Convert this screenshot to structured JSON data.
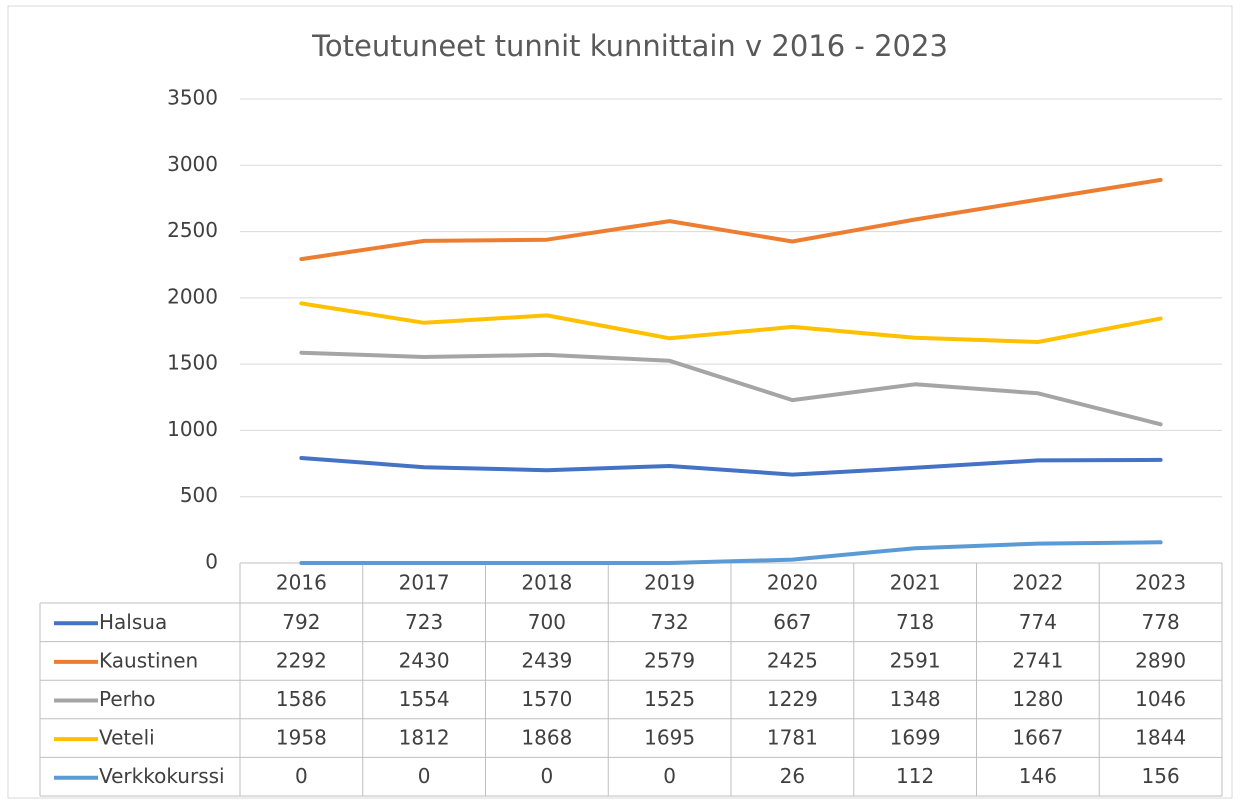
{
  "chart_data": {
    "type": "line",
    "title": "Toteutuneet tunnit kunnittain v  2016 - 2023",
    "categories": [
      "2016",
      "2017",
      "2018",
      "2019",
      "2020",
      "2021",
      "2022",
      "2023"
    ],
    "series": [
      {
        "name": "Halsua",
        "color": "#4472c4",
        "values": [
          792,
          723,
          700,
          732,
          667,
          718,
          774,
          778
        ]
      },
      {
        "name": "Kaustinen",
        "color": "#ed7d31",
        "values": [
          2292,
          2430,
          2439,
          2579,
          2425,
          2591,
          2741,
          2890
        ]
      },
      {
        "name": "Perho",
        "color": "#a5a5a5",
        "values": [
          1586,
          1554,
          1570,
          1525,
          1229,
          1348,
          1280,
          1046
        ]
      },
      {
        "name": "Veteli",
        "color": "#ffc000",
        "values": [
          1958,
          1812,
          1868,
          1695,
          1781,
          1699,
          1667,
          1844
        ]
      },
      {
        "name": "Verkkokurssi",
        "color": "#5b9bd5",
        "values": [
          0,
          0,
          0,
          0,
          26,
          112,
          146,
          156
        ]
      }
    ],
    "ylim": [
      0,
      3500
    ],
    "yticks": [
      0,
      500,
      1000,
      1500,
      2000,
      2500,
      3000,
      3500
    ],
    "grid": true
  }
}
